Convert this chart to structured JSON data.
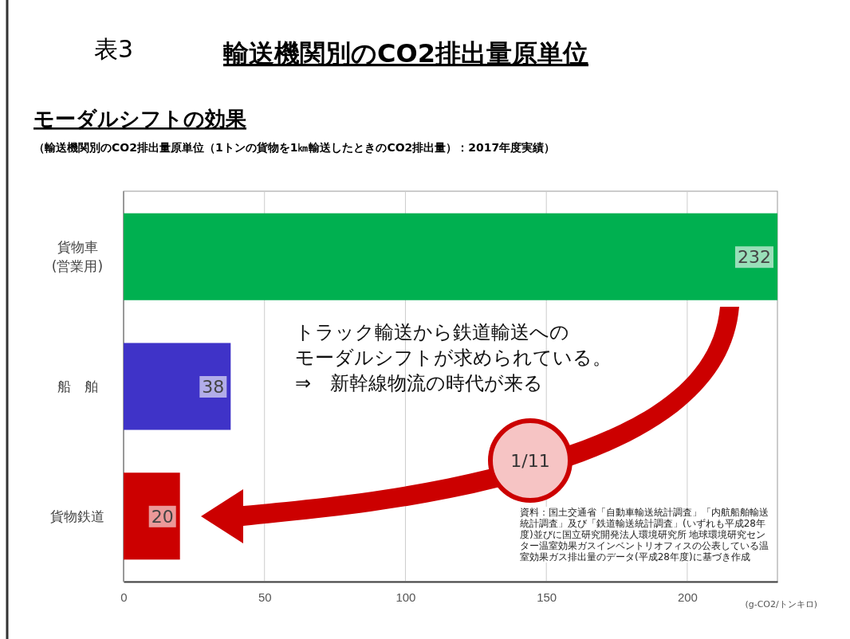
{
  "chart_data": {
    "type": "bar",
    "orientation": "horizontal",
    "title": "輸送機関別のCO2排出量原単位",
    "subtitle": "モーダルシフトの効果",
    "categories": [
      "貨物車\n(営業用)",
      "船　舶",
      "貨物鉄道"
    ],
    "values": [
      232,
      38,
      20
    ],
    "colors": [
      "#00b050",
      "#3f33c8",
      "#cc0000"
    ],
    "data_labels": true,
    "xlim": [
      0,
      232
    ],
    "xticks": [
      0,
      50,
      100,
      150,
      200
    ],
    "xlabel": "(g-CO2/トンキロ)",
    "grid": "x",
    "annotations": [
      "表3",
      "（輸送機関別のCO2排出量原単位（1トンの貨物を1㎞輸送したときのCO2排出量）：2017年度実績）",
      "トラック輸送から鉄道輸送への",
      "モーダルシフトが求められている。",
      "⇒　新幹線物流の時代が来る",
      "1/11",
      "資料：国土交通省「自動車輸送統計調査」「内航船舶輸送統計調査」及び「鉄道輸送統計調査」(いずれも平成28年度)並びに国立研究開発法人環境研究所 地球環境研究センター温室効果ガスインベントリオフィスの公表している温室効果ガス排出量のデータ(平成28年度)に基づき作成"
    ]
  }
}
